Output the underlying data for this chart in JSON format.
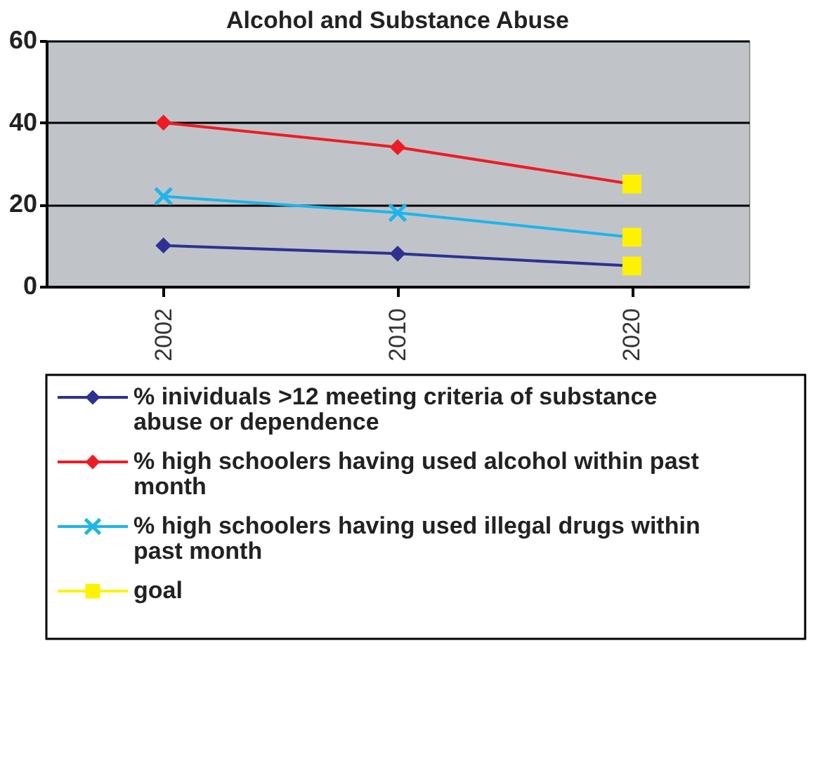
{
  "chart_data": {
    "type": "line",
    "title": "Alcohol and Substance Abuse",
    "categories": [
      "2002",
      "2010",
      "2020"
    ],
    "series": [
      {
        "name": "% inividuals >12 meeting criteria of substance abuse or dependence",
        "color": "#2e3192",
        "marker": "diamond",
        "values": [
          10,
          8,
          5
        ]
      },
      {
        "name": "% high schoolers having used alcohol within past month",
        "color": "#ed1c24",
        "marker": "diamond",
        "values": [
          40,
          34,
          25
        ]
      },
      {
        "name": "% high schoolers having used illegal drugs within past month",
        "color": "#1cb5ec",
        "marker": "cross",
        "values": [
          22,
          18,
          12
        ]
      },
      {
        "name": "goal",
        "type": "scatter",
        "color": "#fff200",
        "marker": "square",
        "values": [
          null,
          null,
          25
        ]
      },
      {
        "type": "scatter",
        "color": "#fff200",
        "marker": "square",
        "values": [
          null,
          null,
          12
        ]
      },
      {
        "type": "scatter",
        "color": "#fff200",
        "marker": "square",
        "values": [
          null,
          null,
          5
        ]
      }
    ],
    "ylim": [
      0,
      60
    ],
    "yticks": [
      0,
      20,
      40,
      60
    ],
    "grid": "y",
    "legend": "bottom"
  }
}
